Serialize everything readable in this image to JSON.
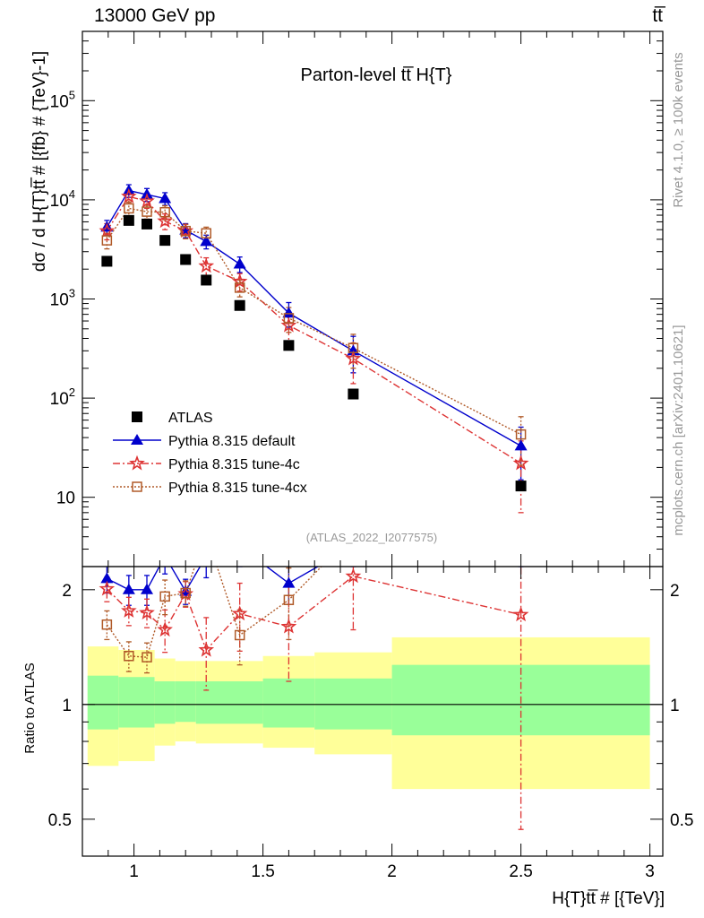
{
  "header": {
    "left": "13000 GeV pp",
    "right": "tt̅"
  },
  "side_labels": {
    "rivet": "Rivet 4.1.0, ≥ 100k events",
    "mcplots": "mcplots.cern.ch [arXiv:2401.10621]"
  },
  "colors": {
    "data": "#000000",
    "default": "#0000cc",
    "tune4c": "#dd3333",
    "tune4cx": "#b05a28",
    "band_yellow": "#ffff99",
    "band_green": "#99ff99",
    "axis": "#000000",
    "watermark": "#999999"
  },
  "chart_data": {
    "type": "scatter",
    "title": "Parton-level tt̅  H{T}",
    "analysis_id": "(ATLAS_2022_I2077575)",
    "xlabel": "H{T}tt̅ # [{TeV}]",
    "ylabel_main": "dσ / d H{T}tt̅ # [{fb} # {TeV}-1]",
    "ylabel_ratio": "Ratio to ATLAS",
    "xlim": [
      0.8,
      3.05
    ],
    "ylim_main": [
      2,
      500000
    ],
    "ylim_ratio": [
      0.4,
      2.3
    ],
    "x_ticks": [
      "1",
      "1.5",
      "2",
      "2.5",
      "3"
    ],
    "y_ticks_main": [
      "10",
      "10^2",
      "10^3",
      "10^4",
      "10^5"
    ],
    "y_ticks_ratio": [
      "0.5",
      "1",
      "2"
    ],
    "bins": [
      {
        "lo": 0.82,
        "hi": 0.94,
        "x": 0.895,
        "atlas": 2400,
        "default": 5300,
        "default_err": 900,
        "tune4c": 4850,
        "tune4c_err": 900,
        "tune4cx": 3900,
        "tune4cx_err": 700
      },
      {
        "lo": 0.94,
        "hi": 1.02,
        "x": 0.98,
        "atlas": 6200,
        "default": 12400,
        "default_err": 1800,
        "tune4c": 10800,
        "tune4c_err": 1600,
        "tune4cx": 8200,
        "tune4cx_err": 1300
      },
      {
        "lo": 1.02,
        "hi": 1.08,
        "x": 1.05,
        "atlas": 5700,
        "default": 11300,
        "default_err": 1700,
        "tune4c": 9700,
        "tune4c_err": 1500,
        "tune4cx": 7600,
        "tune4cx_err": 1200
      },
      {
        "lo": 1.08,
        "hi": 1.16,
        "x": 1.12,
        "atlas": 3900,
        "default": 10300,
        "default_err": 1500,
        "tune4c": 6100,
        "tune4c_err": 1100,
        "tune4cx": 7500,
        "tune4cx_err": 1200
      },
      {
        "lo": 1.16,
        "hi": 1.24,
        "x": 1.2,
        "atlas": 2500,
        "default": 4950,
        "default_err": 800,
        "tune4c": 4850,
        "tune4c_err": 800,
        "tune4cx": 4850,
        "tune4cx_err": 800
      },
      {
        "lo": 1.24,
        "hi": 1.32,
        "x": 1.28,
        "atlas": 1550,
        "default": 3800,
        "default_err": 600,
        "tune4c": 2150,
        "tune4c_err": 450,
        "tune4cx": 4600,
        "tune4cx_err": 700
      },
      {
        "lo": 1.32,
        "hi": 1.5,
        "x": 1.41,
        "atlas": 860,
        "default": 2250,
        "default_err": 400,
        "tune4c": 1500,
        "tune4c_err": 300,
        "tune4cx": 1300,
        "tune4cx_err": 250
      },
      {
        "lo": 1.5,
        "hi": 1.7,
        "x": 1.6,
        "atlas": 340,
        "default": 720,
        "default_err": 200,
        "tune4c": 540,
        "tune4c_err": 170,
        "tune4cx": 640,
        "tune4cx_err": 180
      },
      {
        "lo": 1.7,
        "hi": 2.0,
        "x": 1.85,
        "atlas": 110,
        "default": 300,
        "default_err": 120,
        "tune4c": 250,
        "tune4c_err": 110,
        "tune4cx": 320,
        "tune4cx_err": 120
      },
      {
        "lo": 2.0,
        "hi": 3.0,
        "x": 2.5,
        "atlas": 13,
        "default": 33,
        "default_err": 18,
        "tune4c": 22,
        "tune4c_err": 15,
        "tune4cx": 43,
        "tune4cx_err": 22
      }
    ],
    "ratio": {
      "bands": [
        {
          "lo": 0.82,
          "hi": 0.94,
          "yellow": [
            0.69,
            1.42
          ],
          "green": [
            0.86,
            1.19
          ]
        },
        {
          "lo": 0.94,
          "hi": 1.08,
          "yellow": [
            0.71,
            1.39
          ],
          "green": [
            0.87,
            1.18
          ]
        },
        {
          "lo": 1.08,
          "hi": 1.16,
          "yellow": [
            0.78,
            1.32
          ],
          "green": [
            0.89,
            1.15
          ]
        },
        {
          "lo": 1.16,
          "hi": 1.24,
          "yellow": [
            0.8,
            1.3
          ],
          "green": [
            0.9,
            1.15
          ]
        },
        {
          "lo": 1.24,
          "hi": 1.5,
          "yellow": [
            0.79,
            1.3
          ],
          "green": [
            0.89,
            1.15
          ]
        },
        {
          "lo": 1.5,
          "hi": 1.7,
          "yellow": [
            0.77,
            1.34
          ],
          "green": [
            0.87,
            1.17
          ]
        },
        {
          "lo": 1.7,
          "hi": 2.0,
          "yellow": [
            0.74,
            1.37
          ],
          "green": [
            0.86,
            1.17
          ]
        },
        {
          "lo": 2.0,
          "hi": 3.0,
          "yellow": [
            0.6,
            1.5
          ],
          "green": [
            0.83,
            1.27
          ]
        }
      ],
      "default": [
        2.14,
        2.0,
        2.0,
        2.45,
        1.98,
        2.45,
        2.6,
        2.08,
        2.6,
        2.6
      ],
      "default_err": [
        0.18,
        0.18,
        0.18,
        0.25,
        0.15,
        0.3,
        0.3,
        0.25,
        0.3,
        0.3
      ],
      "tune4c": [
        2.01,
        1.76,
        1.74,
        1.57,
        1.95,
        1.39,
        1.73,
        1.6,
        2.17,
        1.72
      ],
      "tune4c_err": [
        0.15,
        0.15,
        0.15,
        0.2,
        0.15,
        0.3,
        0.35,
        0.45,
        0.6,
        1.25
      ],
      "tune4cx": [
        1.62,
        1.34,
        1.33,
        1.92,
        1.96,
        2.8,
        1.52,
        1.88,
        2.8,
        2.8
      ],
      "tune4cx_err": [
        0.14,
        0.12,
        0.12,
        0.2,
        0.15,
        0.3,
        0.25,
        0.4,
        0.4,
        0.4
      ]
    },
    "legend": {
      "position": "bottom-left",
      "entries": [
        {
          "key": "atlas",
          "label": "ATLAS"
        },
        {
          "key": "default",
          "label": "Pythia 8.315 default"
        },
        {
          "key": "tune4c",
          "label": "Pythia 8.315 tune-4c"
        },
        {
          "key": "tune4cx",
          "label": "Pythia 8.315 tune-4cx"
        }
      ]
    }
  }
}
